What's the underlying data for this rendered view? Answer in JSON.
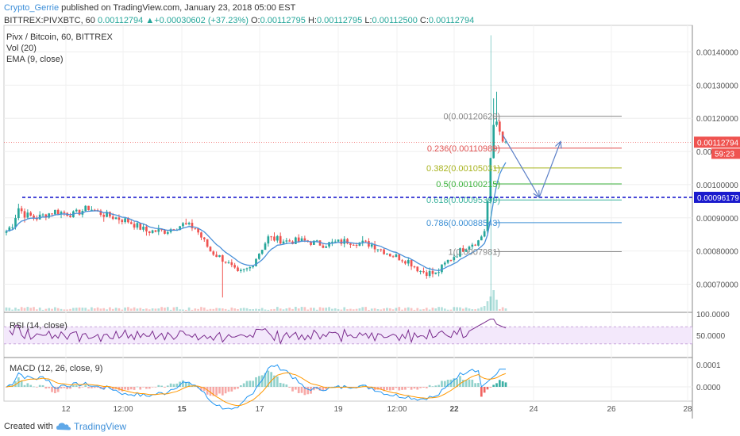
{
  "header": {
    "author": "Crypto_Gerrie",
    "published_text": "published on TradingView.com, January 23, 2018 05:00 EST",
    "symbol_line": "BITTREX:PIVXBTC, 60",
    "last": "0.00112794",
    "change_arrow": "▲",
    "change": "+0.00030602 (+37.23%)",
    "o_label": "O:",
    "o_value": "0.00112795",
    "h_label": "H:",
    "h_value": "0.00112795",
    "l_label": "L:",
    "l_value": "0.00112500",
    "c_label": "C:",
    "c_value": "0.00112794"
  },
  "legend": {
    "title": "Pivx / Bitcoin, 60, BITTREX",
    "vol": "Vol (20)",
    "ema": "EMA (9, close)"
  },
  "footer": {
    "created_with": "Created with",
    "brand": "TradingView"
  },
  "colors": {
    "bull": "#26a69a",
    "bear": "#ef5350",
    "ema": "#4a90d9",
    "support": "#1a1acd",
    "rsi": "#7b2d8e",
    "rsi_band": "#f3e8fb",
    "macd": "#2196f3",
    "signal": "#ff9800",
    "last_label": "#ef5350",
    "arrow": "#5b7fc7"
  },
  "chart_data": [
    {
      "type": "candlestick",
      "title": "Pivx / Bitcoin, 60, BITTREX",
      "ylim": [
        0.00062,
        0.00148
      ],
      "x_ticks": [
        "12",
        "12:00",
        "15",
        "17",
        "19",
        "12:00",
        "22",
        "24",
        "26",
        "28"
      ],
      "y_ticks": [
        "0.00140000",
        "0.00130000",
        "0.00120000",
        "0.00110000",
        "0.00100000",
        "0.00090000",
        "0.00080000",
        "0.00070000"
      ],
      "price_anchors": [
        [
          0,
          0.00086
        ],
        [
          2,
          0.00088
        ],
        [
          4,
          0.00093
        ],
        [
          6,
          0.00091
        ],
        [
          10,
          0.0009
        ],
        [
          16,
          0.00092
        ],
        [
          22,
          0.00091
        ],
        [
          27,
          0.00093
        ],
        [
          32,
          0.00091
        ],
        [
          40,
          0.00089
        ],
        [
          46,
          0.00086
        ],
        [
          52,
          0.00086
        ],
        [
          58,
          0.00088
        ],
        [
          62,
          0.00087
        ],
        [
          67,
          0.0008
        ],
        [
          72,
          0.00077
        ],
        [
          76,
          0.00073
        ],
        [
          80,
          0.00075
        ],
        [
          86,
          0.00084
        ],
        [
          92,
          0.00083
        ],
        [
          98,
          0.00083
        ],
        [
          104,
          0.00082
        ],
        [
          112,
          0.00083
        ],
        [
          120,
          0.00082
        ],
        [
          126,
          0.00079
        ],
        [
          132,
          0.00077
        ],
        [
          136,
          0.00074
        ],
        [
          141,
          0.00073
        ],
        [
          145,
          0.00077
        ],
        [
          149,
          0.0008
        ],
        [
          152,
          0.00082
        ],
        [
          155,
          0.00083
        ],
        [
          157,
          0.00086
        ],
        [
          158,
          0.00095
        ],
        [
          159,
          0.00108
        ],
        [
          160,
          0.00118
        ],
        [
          161,
          0.00119
        ],
        [
          162,
          0.00116
        ],
        [
          163,
          0.00113
        ]
      ],
      "volume_spike_indices": [
        157,
        158,
        159,
        160,
        161
      ],
      "fibonacci": [
        {
          "level": "0",
          "value": 0.0012062,
          "label": "0(0.00120620)",
          "color": "#888888"
        },
        {
          "level": "0.236",
          "value": 0.00110989,
          "label": "0.236(0.00110989)",
          "color": "#e05252"
        },
        {
          "level": "0.382",
          "value": 0.00105031,
          "label": "0.382(0.00105031)",
          "color": "#a8b31e"
        },
        {
          "level": "0.5",
          "value": 0.00100215,
          "label": "0.5(0.00100215)",
          "color": "#3db33d"
        },
        {
          "level": "0.618",
          "value": 0.00095399,
          "label": "0.618(0.00095399)",
          "color": "#3db39e"
        },
        {
          "level": "0.786",
          "value": 0.00088543,
          "label": "0.786(0.00088543)",
          "color": "#3c8fd4"
        },
        {
          "level": "1",
          "value": 0.0007981,
          "label": "1(0.0007981)",
          "color": "#888888"
        }
      ],
      "support_level": 0.00096179,
      "support_label": "0.00096179",
      "last_price": 0.00112794,
      "last_price_label": "0.00112794",
      "countdown": "59:23",
      "projected_path": [
        [
          163,
          0.00115
        ],
        [
          175,
          0.00096179
        ],
        [
          182,
          0.00113
        ]
      ]
    },
    {
      "type": "line",
      "title": "RSI (14, close)",
      "ylim": [
        0,
        100
      ],
      "y_ticks": [
        "100.0000",
        "50.0000"
      ],
      "band": [
        30,
        70
      ]
    },
    {
      "type": "line",
      "title": "MACD (12, 26, close, 9)",
      "y_ticks": [
        "0.0001",
        "0.0000"
      ]
    }
  ]
}
